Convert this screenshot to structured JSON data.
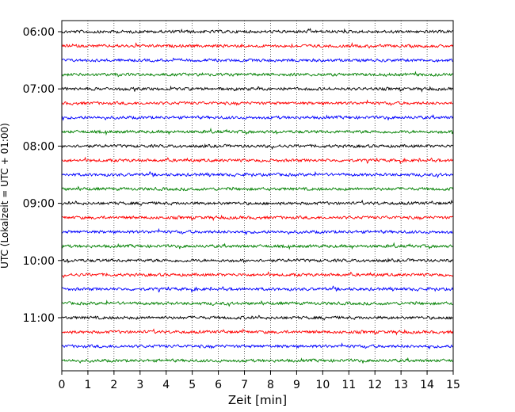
{
  "chart_data": {
    "type": "line",
    "xlabel": "Zeit  [min]",
    "ylabel": "UTC (Lokalzeit = UTC + 01:00)",
    "xlim": [
      0,
      15
    ],
    "x_ticks": [
      "0",
      "1",
      "2",
      "3",
      "4",
      "5",
      "6",
      "7",
      "8",
      "9",
      "10",
      "11",
      "12",
      "13",
      "14",
      "15"
    ],
    "y_tick_labels": [
      "06:00",
      "07:00",
      "08:00",
      "09:00",
      "10:00",
      "11:00"
    ],
    "trace_count": 24,
    "trace_start": "06:00",
    "trace_interval_minutes": 15,
    "trace_colors": [
      "#000000",
      "#ff0000",
      "#0000ff",
      "#008000"
    ],
    "grid": "vertical dotted",
    "legend": "none"
  }
}
